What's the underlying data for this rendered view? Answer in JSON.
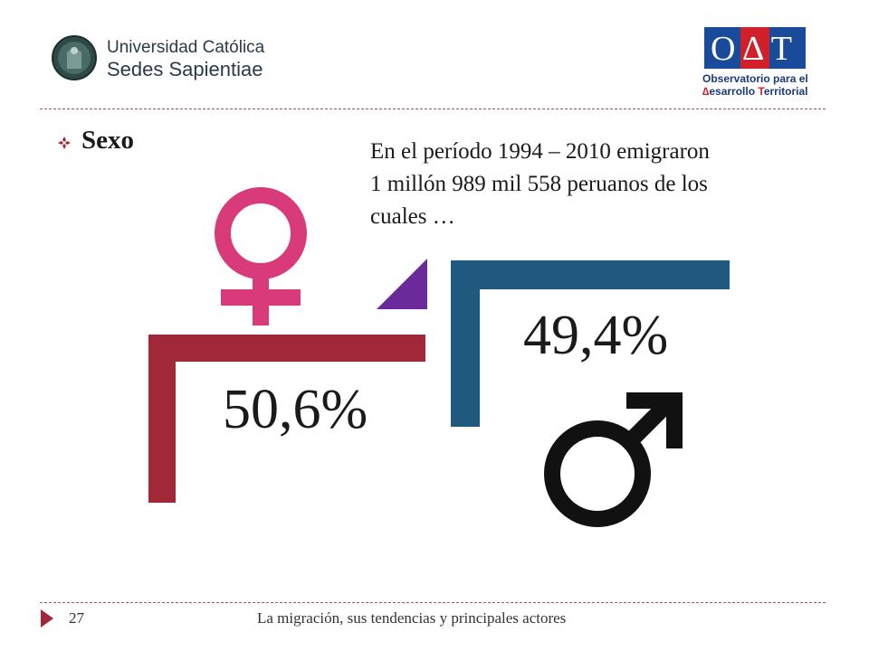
{
  "header": {
    "university_logo": {
      "line1": "Universidad Católica",
      "line2": "Sedes Sapientiae"
    },
    "odt_logo": {
      "acronym": "O∆T",
      "subtitle_line1": "Observatorio para el",
      "subtitle_line2_initial": "∆",
      "subtitle_line2_rest": "esarrollo ",
      "subtitle_line2_initial2": "T",
      "subtitle_line2_rest2": "erritorial"
    }
  },
  "slide": {
    "heading": "Sexo",
    "intro_lines": [
      "En el período 1994 – 2010 emigraron",
      "1 millón 989 mil 558 peruanos de los",
      "cuales …"
    ],
    "female": {
      "percent_label": "50,6%",
      "icon": "female-symbol-icon"
    },
    "male": {
      "percent_label": "49,4%",
      "icon": "male-symbol-icon"
    }
  },
  "footer": {
    "page_number": "27",
    "title": "La migración, sus tendencias y principales actores"
  },
  "colors": {
    "female_bracket": "#a02838",
    "male_bracket": "#1f5a7e",
    "female_symbol": "#d83a7a",
    "connector": "#6a2a9a",
    "divider": "#b05058",
    "odt_blue": "#1a4a9a",
    "odt_red": "#d0202a"
  }
}
